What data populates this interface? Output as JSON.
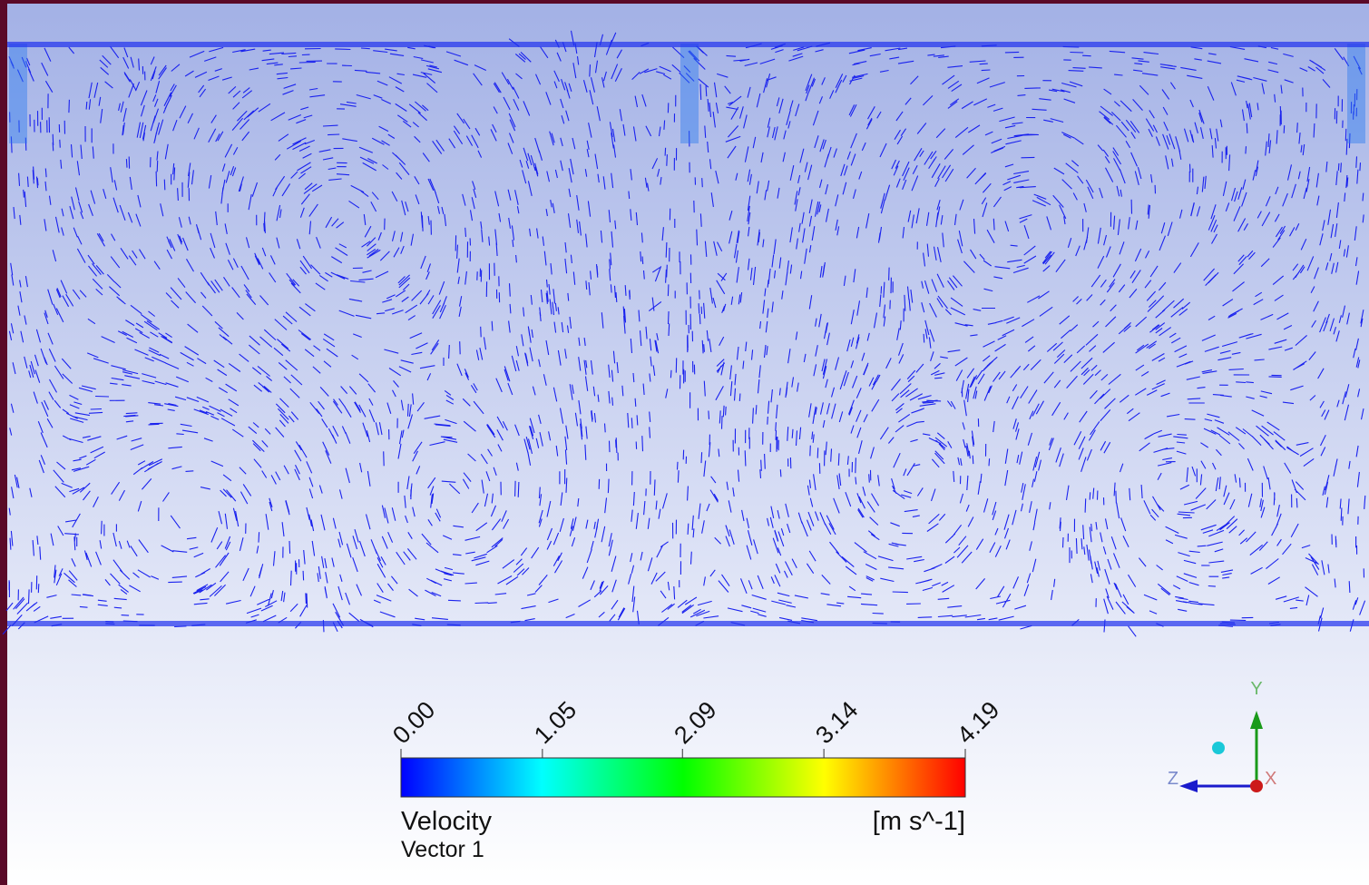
{
  "colorbar": {
    "variable": "Velocity",
    "name": "Vector 1",
    "unit": "[m s^-1]",
    "range": [
      0,
      4.19
    ],
    "ticks": [
      {
        "value": 0,
        "label": "0.00"
      },
      {
        "value": 1.05,
        "label": "1.05"
      },
      {
        "value": 2.09,
        "label": "2.09"
      },
      {
        "value": 3.14,
        "label": "3.14"
      },
      {
        "value": 4.19,
        "label": "4.19"
      }
    ],
    "colors": [
      "#0000ff",
      "#00ffff",
      "#00ff00",
      "#ffff00",
      "#ff0000"
    ]
  },
  "axes": {
    "x": "X",
    "y": "Y",
    "z": "Z"
  }
}
